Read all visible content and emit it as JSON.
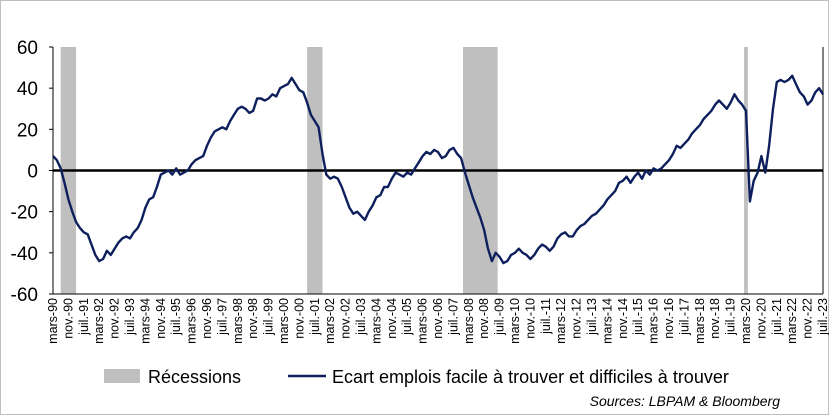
{
  "chart_data": {
    "type": "line",
    "title": "",
    "xlabel": "",
    "ylabel": "",
    "ylim": [
      -60,
      60
    ],
    "yticks": [
      60,
      40,
      20,
      0,
      -20,
      -40,
      -60
    ],
    "x_range": [
      "1990-03",
      "2023-07"
    ],
    "x_tick_labels": [
      "mars-90",
      "nov.-90",
      "juil.-91",
      "mars-92",
      "nov.-92",
      "juil.-93",
      "mars-94",
      "nov.-94",
      "juil.-95",
      "mars-96",
      "nov.-96",
      "juil.-97",
      "mars-98",
      "nov.-98",
      "juil.-99",
      "mars-00",
      "nov.-00",
      "juil.-01",
      "mars-02",
      "nov.-02",
      "juil.-03",
      "mars-04",
      "nov.-04",
      "juil.-05",
      "mars-06",
      "nov.-06",
      "juil.-07",
      "mars-08",
      "nov.-08",
      "juil.-09",
      "mars-10",
      "nov.-10",
      "juil.-11",
      "mars-12",
      "nov.-12",
      "juil.-13",
      "mars-14",
      "nov.-14",
      "juil.-15",
      "mars-16",
      "nov.-16",
      "juil.-17",
      "mars-18",
      "nov.-18",
      "juil.-19",
      "mars-20",
      "nov.-20",
      "juil.-21",
      "mars-22",
      "nov.-22",
      "juil.-23"
    ],
    "recessions": [
      {
        "start": "1990-07",
        "end": "1991-03"
      },
      {
        "start": "2001-03",
        "end": "2001-11"
      },
      {
        "start": "2007-12",
        "end": "2009-06"
      },
      {
        "start": "2020-02",
        "end": "2020-04"
      }
    ],
    "series": [
      {
        "name": "Ecart emplois facile à trouver et difficiles à trouver",
        "color": "#0d1f5c",
        "points": [
          [
            "1990-03",
            7
          ],
          [
            "1990-05",
            5
          ],
          [
            "1990-07",
            1
          ],
          [
            "1990-09",
            -6
          ],
          [
            "1990-11",
            -14
          ],
          [
            "1991-01",
            -20
          ],
          [
            "1991-03",
            -25
          ],
          [
            "1991-05",
            -28
          ],
          [
            "1991-07",
            -30
          ],
          [
            "1991-09",
            -31
          ],
          [
            "1991-11",
            -36
          ],
          [
            "1992-01",
            -41
          ],
          [
            "1992-03",
            -44
          ],
          [
            "1992-05",
            -43
          ],
          [
            "1992-07",
            -39
          ],
          [
            "1992-09",
            -41
          ],
          [
            "1992-11",
            -38
          ],
          [
            "1993-01",
            -35
          ],
          [
            "1993-03",
            -33
          ],
          [
            "1993-05",
            -32
          ],
          [
            "1993-07",
            -33
          ],
          [
            "1993-09",
            -30
          ],
          [
            "1993-11",
            -28
          ],
          [
            "1994-01",
            -24
          ],
          [
            "1994-03",
            -18
          ],
          [
            "1994-05",
            -14
          ],
          [
            "1994-07",
            -13
          ],
          [
            "1994-09",
            -8
          ],
          [
            "1994-11",
            -2
          ],
          [
            "1995-01",
            -1
          ],
          [
            "1995-03",
            0
          ],
          [
            "1995-05",
            -2
          ],
          [
            "1995-07",
            1
          ],
          [
            "1995-09",
            -2
          ],
          [
            "1995-11",
            -1
          ],
          [
            "1996-01",
            0
          ],
          [
            "1996-03",
            3
          ],
          [
            "1996-05",
            5
          ],
          [
            "1996-07",
            6
          ],
          [
            "1996-09",
            7
          ],
          [
            "1996-11",
            12
          ],
          [
            "1997-01",
            16
          ],
          [
            "1997-03",
            19
          ],
          [
            "1997-05",
            20
          ],
          [
            "1997-07",
            21
          ],
          [
            "1997-09",
            20
          ],
          [
            "1997-11",
            24
          ],
          [
            "1998-01",
            27
          ],
          [
            "1998-03",
            30
          ],
          [
            "1998-05",
            31
          ],
          [
            "1998-07",
            30
          ],
          [
            "1998-09",
            28
          ],
          [
            "1998-11",
            29
          ],
          [
            "1999-01",
            35
          ],
          [
            "1999-03",
            35
          ],
          [
            "1999-05",
            34
          ],
          [
            "1999-07",
            35
          ],
          [
            "1999-09",
            37
          ],
          [
            "1999-11",
            36
          ],
          [
            "2000-01",
            40
          ],
          [
            "2000-03",
            41
          ],
          [
            "2000-05",
            42
          ],
          [
            "2000-07",
            45
          ],
          [
            "2000-09",
            42
          ],
          [
            "2000-11",
            39
          ],
          [
            "2001-01",
            38
          ],
          [
            "2001-03",
            33
          ],
          [
            "2001-05",
            27
          ],
          [
            "2001-07",
            24
          ],
          [
            "2001-09",
            21
          ],
          [
            "2001-11",
            8
          ],
          [
            "2002-01",
            -2
          ],
          [
            "2002-03",
            -4
          ],
          [
            "2002-05",
            -3
          ],
          [
            "2002-07",
            -4
          ],
          [
            "2002-09",
            -8
          ],
          [
            "2002-11",
            -13
          ],
          [
            "2003-01",
            -18
          ],
          [
            "2003-03",
            -21
          ],
          [
            "2003-05",
            -20
          ],
          [
            "2003-07",
            -22
          ],
          [
            "2003-09",
            -24
          ],
          [
            "2003-11",
            -20
          ],
          [
            "2004-01",
            -17
          ],
          [
            "2004-03",
            -13
          ],
          [
            "2004-05",
            -12
          ],
          [
            "2004-07",
            -8
          ],
          [
            "2004-09",
            -8
          ],
          [
            "2004-11",
            -4
          ],
          [
            "2005-01",
            -1
          ],
          [
            "2005-03",
            -2
          ],
          [
            "2005-05",
            -3
          ],
          [
            "2005-07",
            -1
          ],
          [
            "2005-09",
            -2
          ],
          [
            "2005-11",
            1
          ],
          [
            "2006-01",
            4
          ],
          [
            "2006-03",
            7
          ],
          [
            "2006-05",
            9
          ],
          [
            "2006-07",
            8
          ],
          [
            "2006-09",
            10
          ],
          [
            "2006-11",
            9
          ],
          [
            "2007-01",
            6
          ],
          [
            "2007-03",
            7
          ],
          [
            "2007-05",
            10
          ],
          [
            "2007-07",
            11
          ],
          [
            "2007-09",
            8
          ],
          [
            "2007-11",
            6
          ],
          [
            "2008-01",
            -1
          ],
          [
            "2008-03",
            -7
          ],
          [
            "2008-05",
            -13
          ],
          [
            "2008-07",
            -18
          ],
          [
            "2008-09",
            -23
          ],
          [
            "2008-11",
            -29
          ],
          [
            "2009-01",
            -38
          ],
          [
            "2009-03",
            -44
          ],
          [
            "2009-05",
            -40
          ],
          [
            "2009-07",
            -42
          ],
          [
            "2009-09",
            -45
          ],
          [
            "2009-11",
            -44
          ],
          [
            "2010-01",
            -41
          ],
          [
            "2010-03",
            -40
          ],
          [
            "2010-05",
            -38
          ],
          [
            "2010-07",
            -40
          ],
          [
            "2010-09",
            -41
          ],
          [
            "2010-11",
            -43
          ],
          [
            "2011-01",
            -41
          ],
          [
            "2011-03",
            -38
          ],
          [
            "2011-05",
            -36
          ],
          [
            "2011-07",
            -37
          ],
          [
            "2011-09",
            -39
          ],
          [
            "2011-11",
            -37
          ],
          [
            "2012-01",
            -33
          ],
          [
            "2012-03",
            -31
          ],
          [
            "2012-05",
            -30
          ],
          [
            "2012-07",
            -32
          ],
          [
            "2012-09",
            -32
          ],
          [
            "2012-11",
            -29
          ],
          [
            "2013-01",
            -27
          ],
          [
            "2013-03",
            -26
          ],
          [
            "2013-05",
            -24
          ],
          [
            "2013-07",
            -22
          ],
          [
            "2013-09",
            -21
          ],
          [
            "2013-11",
            -19
          ],
          [
            "2014-01",
            -17
          ],
          [
            "2014-03",
            -14
          ],
          [
            "2014-05",
            -12
          ],
          [
            "2014-07",
            -10
          ],
          [
            "2014-09",
            -6
          ],
          [
            "2014-11",
            -5
          ],
          [
            "2015-01",
            -3
          ],
          [
            "2015-03",
            -6
          ],
          [
            "2015-05",
            -3
          ],
          [
            "2015-07",
            -1
          ],
          [
            "2015-09",
            -4
          ],
          [
            "2015-11",
            0
          ],
          [
            "2016-01",
            -2
          ],
          [
            "2016-03",
            1
          ],
          [
            "2016-05",
            0
          ],
          [
            "2016-07",
            1
          ],
          [
            "2016-09",
            3
          ],
          [
            "2016-11",
            5
          ],
          [
            "2017-01",
            8
          ],
          [
            "2017-03",
            12
          ],
          [
            "2017-05",
            11
          ],
          [
            "2017-07",
            13
          ],
          [
            "2017-09",
            15
          ],
          [
            "2017-11",
            18
          ],
          [
            "2018-01",
            20
          ],
          [
            "2018-03",
            22
          ],
          [
            "2018-05",
            25
          ],
          [
            "2018-07",
            27
          ],
          [
            "2018-09",
            29
          ],
          [
            "2018-11",
            32
          ],
          [
            "2019-01",
            34
          ],
          [
            "2019-03",
            32
          ],
          [
            "2019-05",
            30
          ],
          [
            "2019-07",
            33
          ],
          [
            "2019-09",
            37
          ],
          [
            "2019-11",
            34
          ],
          [
            "2020-01",
            32
          ],
          [
            "2020-03",
            29
          ],
          [
            "2020-05",
            -15
          ],
          [
            "2020-07",
            -5
          ],
          [
            "2020-09",
            -1
          ],
          [
            "2020-11",
            7
          ],
          [
            "2021-01",
            -1
          ],
          [
            "2021-03",
            12
          ],
          [
            "2021-05",
            30
          ],
          [
            "2021-07",
            43
          ],
          [
            "2021-09",
            44
          ],
          [
            "2021-11",
            43
          ],
          [
            "2022-01",
            44
          ],
          [
            "2022-03",
            46
          ],
          [
            "2022-05",
            42
          ],
          [
            "2022-07",
            38
          ],
          [
            "2022-09",
            36
          ],
          [
            "2022-11",
            32
          ],
          [
            "2023-01",
            34
          ],
          [
            "2023-03",
            38
          ],
          [
            "2023-05",
            40
          ],
          [
            "2023-07",
            37
          ]
        ]
      }
    ],
    "legend": {
      "position": "bottom",
      "items": [
        {
          "label": "Récessions",
          "kind": "band",
          "color": "#bfbfbf"
        },
        {
          "label": "Ecart emplois facile à trouver et difficiles à trouver",
          "kind": "line",
          "color": "#0d1f5c"
        }
      ]
    },
    "source": "Sources: LBPAM & Bloomberg",
    "zero_line": true
  }
}
